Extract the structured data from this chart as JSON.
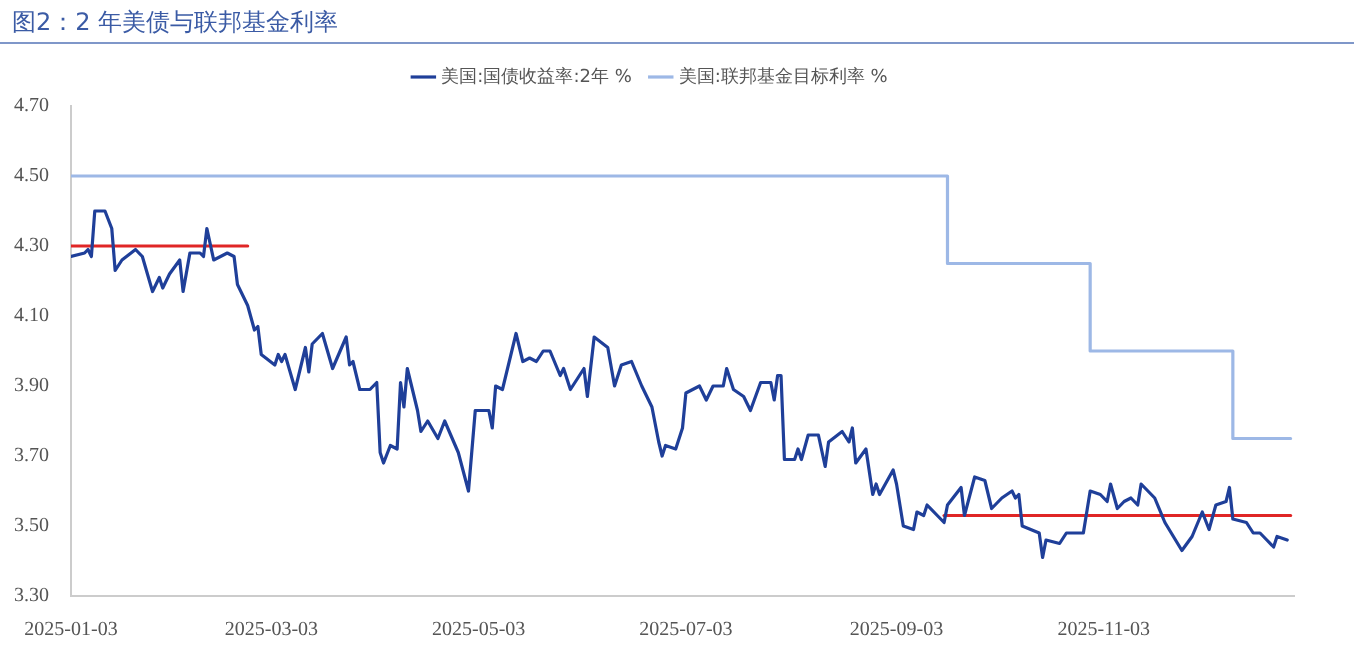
{
  "chart_data": {
    "type": "line",
    "title": "图2：2 年美债与联邦基金利率",
    "x": [
      "2025-01-03",
      "2025-01-07",
      "2025-01-08",
      "2025-01-09",
      "2025-01-10",
      "2025-01-13",
      "2025-01-15",
      "2025-01-16",
      "2025-01-18",
      "2025-01-22",
      "2025-01-24",
      "2025-01-27",
      "2025-01-29",
      "2025-01-30",
      "2025-02-01",
      "2025-02-04",
      "2025-02-05",
      "2025-02-07",
      "2025-02-10",
      "2025-02-11",
      "2025-02-12",
      "2025-02-14",
      "2025-02-18",
      "2025-02-20",
      "2025-02-21",
      "2025-02-24",
      "2025-02-26",
      "2025-02-27",
      "2025-02-28",
      "2025-03-04",
      "2025-03-05",
      "2025-03-06",
      "2025-03-07",
      "2025-03-10",
      "2025-03-13",
      "2025-03-14",
      "2025-03-15",
      "2025-03-18",
      "2025-03-21",
      "2025-03-25",
      "2025-03-26",
      "2025-03-27",
      "2025-03-29",
      "2025-04-01",
      "2025-04-03",
      "2025-04-04",
      "2025-04-05",
      "2025-04-07",
      "2025-04-09",
      "2025-04-10",
      "2025-04-11",
      "2025-04-12",
      "2025-04-15",
      "2025-04-16",
      "2025-04-18",
      "2025-04-21",
      "2025-04-23",
      "2025-04-27",
      "2025-04-30",
      "2025-05-02",
      "2025-05-06",
      "2025-05-07",
      "2025-05-08",
      "2025-05-10",
      "2025-05-14",
      "2025-05-16",
      "2025-05-18",
      "2025-05-20",
      "2025-05-22",
      "2025-05-24",
      "2025-05-27",
      "2025-05-28",
      "2025-05-30",
      "2025-06-03",
      "2025-06-04",
      "2025-06-06",
      "2025-06-10",
      "2025-06-12",
      "2025-06-14",
      "2025-06-17",
      "2025-06-20",
      "2025-06-23",
      "2025-06-25",
      "2025-06-26",
      "2025-06-27",
      "2025-06-30",
      "2025-07-02",
      "2025-07-03",
      "2025-07-07",
      "2025-07-09",
      "2025-07-11",
      "2025-07-14",
      "2025-07-15",
      "2025-07-17",
      "2025-07-20",
      "2025-07-22",
      "2025-07-25",
      "2025-07-28",
      "2025-07-29",
      "2025-07-30",
      "2025-07-31",
      "2025-08-01",
      "2025-08-04",
      "2025-08-05",
      "2025-08-06",
      "2025-08-08",
      "2025-08-11",
      "2025-08-13",
      "2025-08-14",
      "2025-08-18",
      "2025-08-20",
      "2025-08-21",
      "2025-08-22",
      "2025-08-25",
      "2025-08-27",
      "2025-08-28",
      "2025-08-29",
      "2025-09-02",
      "2025-09-03",
      "2025-09-05",
      "2025-09-08",
      "2025-09-09",
      "2025-09-11",
      "2025-09-12",
      "2025-09-15",
      "2025-09-17",
      "2025-09-18",
      "2025-09-22",
      "2025-09-23",
      "2025-09-26",
      "2025-09-29",
      "2025-10-01",
      "2025-10-04",
      "2025-10-07",
      "2025-10-08",
      "2025-10-09",
      "2025-10-10",
      "2025-10-15",
      "2025-10-16",
      "2025-10-17",
      "2025-10-21",
      "2025-10-23",
      "2025-10-28",
      "2025-10-30",
      "2025-11-02",
      "2025-11-04",
      "2025-11-05",
      "2025-11-07",
      "2025-11-09",
      "2025-11-11",
      "2025-11-13",
      "2025-11-14",
      "2025-11-18",
      "2025-11-21",
      "2025-11-26",
      "2025-11-29",
      "2025-12-02",
      "2025-12-04",
      "2025-12-06",
      "2025-12-09",
      "2025-12-10",
      "2025-12-11",
      "2025-12-15",
      "2025-12-17",
      "2025-12-19",
      "2025-12-21",
      "2025-12-23",
      "2025-12-24",
      "2025-12-27"
    ],
    "series": [
      {
        "name": "美国:国债收益率:2年 %",
        "type": "line",
        "color": "#1f3f99",
        "values": [
          4.27,
          4.28,
          4.29,
          4.27,
          4.4,
          4.4,
          4.35,
          4.23,
          4.26,
          4.29,
          4.27,
          4.17,
          4.21,
          4.18,
          4.22,
          4.26,
          4.17,
          4.28,
          4.28,
          4.27,
          4.35,
          4.26,
          4.28,
          4.27,
          4.19,
          4.13,
          4.06,
          4.07,
          3.99,
          3.96,
          3.99,
          3.97,
          3.99,
          3.89,
          4.01,
          3.94,
          4.02,
          4.05,
          3.95,
          4.04,
          3.96,
          3.97,
          3.89,
          3.89,
          3.91,
          3.71,
          3.68,
          3.73,
          3.72,
          3.91,
          3.84,
          3.95,
          3.83,
          3.77,
          3.8,
          3.75,
          3.8,
          3.71,
          3.6,
          3.83,
          3.83,
          3.78,
          3.9,
          3.89,
          4.05,
          3.97,
          3.98,
          3.97,
          4.0,
          4.0,
          3.93,
          3.95,
          3.89,
          3.95,
          3.87,
          4.04,
          4.01,
          3.9,
          3.96,
          3.97,
          3.9,
          3.84,
          3.74,
          3.7,
          3.73,
          3.72,
          3.78,
          3.88,
          3.9,
          3.86,
          3.9,
          3.9,
          3.95,
          3.89,
          3.87,
          3.83,
          3.91,
          3.91,
          3.86,
          3.93,
          3.93,
          3.69,
          3.69,
          3.72,
          3.69,
          3.76,
          3.76,
          3.67,
          3.74,
          3.77,
          3.74,
          3.78,
          3.68,
          3.72,
          3.59,
          3.62,
          3.59,
          3.66,
          3.62,
          3.5,
          3.49,
          3.54,
          3.53,
          3.56,
          3.53,
          3.51,
          3.56,
          3.61,
          3.53,
          3.64,
          3.63,
          3.55,
          3.58,
          3.6,
          3.58,
          3.59,
          3.5,
          3.48,
          3.41,
          3.46,
          3.45,
          3.48,
          3.48,
          3.6,
          3.59,
          3.57,
          3.62,
          3.55,
          3.57,
          3.58,
          3.56,
          3.62,
          3.58,
          3.51,
          3.43,
          3.47,
          3.54,
          3.49,
          3.56,
          3.57,
          3.61,
          3.52,
          3.51,
          3.48,
          3.48,
          3.46,
          3.44,
          3.47,
          3.46
        ]
      },
      {
        "name": "美国:联邦基金目标利率 %",
        "type": "step",
        "color": "#9db8e6",
        "x": [
          "2025-01-03",
          "2025-09-18",
          "2025-10-30",
          "2025-12-11",
          "2025-12-28"
        ],
        "values": [
          4.5,
          4.25,
          4.0,
          3.75,
          3.75
        ]
      },
      {
        "type": "line",
        "color": "#e02626",
        "x": [
          "2025-01-03",
          "2025-02-24"
        ],
        "values": [
          4.3,
          4.3
        ]
      },
      {
        "type": "line",
        "color": "#e02626",
        "x": [
          "2025-09-17",
          "2025-12-28"
        ],
        "values": [
          3.53,
          3.53
        ]
      }
    ],
    "xlim": [
      "2025-01-03",
      "2025-12-29"
    ],
    "xticks": [
      "2025-01-03",
      "2025-03-03",
      "2025-05-03",
      "2025-07-03",
      "2025-09-03",
      "2025-11-03"
    ],
    "ylim": [
      3.3,
      4.7
    ],
    "yticks": [
      {
        "value": 3.3,
        "label": "3.30"
      },
      {
        "value": 3.5,
        "label": "3.50"
      },
      {
        "value": 3.7,
        "label": "3.70"
      },
      {
        "value": 3.9,
        "label": "3.90"
      },
      {
        "value": 4.1,
        "label": "4.10"
      },
      {
        "value": 4.3,
        "label": "4.30"
      },
      {
        "value": 4.5,
        "label": "4.50"
      },
      {
        "value": 4.7,
        "label": "4.70"
      }
    ],
    "grid": false,
    "legend": "top",
    "marker": "none"
  }
}
